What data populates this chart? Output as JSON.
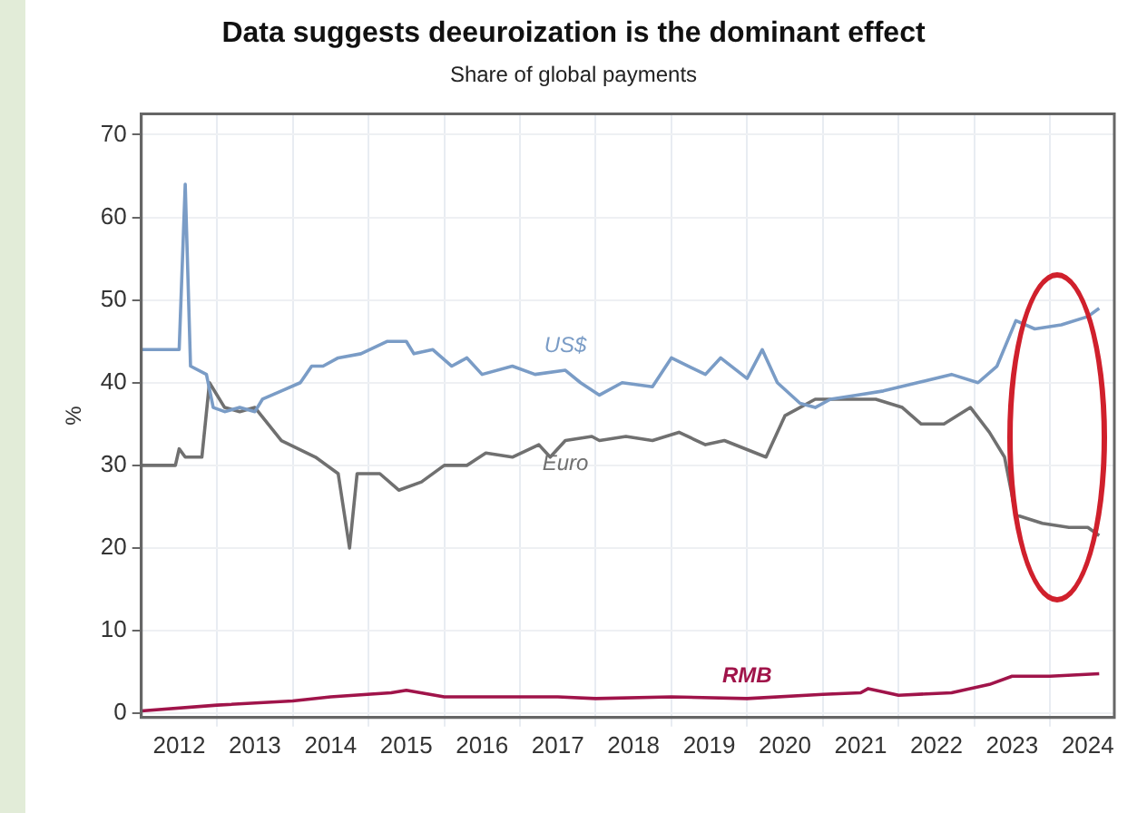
{
  "chart_data": {
    "type": "line",
    "title": "Data suggests deeuroization is the dominant effect",
    "subtitle": "Share of global payments",
    "ylabel": "%",
    "xlim": [
      2012,
      2024.85
    ],
    "ylim": [
      -0.5,
      72.5
    ],
    "xticks": [
      {
        "value": 2012.5,
        "label": "2012"
      },
      {
        "value": 2013,
        "label": null
      },
      {
        "value": 2013.5,
        "label": "2013"
      },
      {
        "value": 2014,
        "label": null
      },
      {
        "value": 2014.5,
        "label": "2014"
      },
      {
        "value": 2015,
        "label": null
      },
      {
        "value": 2015.5,
        "label": "2015"
      },
      {
        "value": 2016,
        "label": null
      },
      {
        "value": 2016.5,
        "label": "2016"
      },
      {
        "value": 2017,
        "label": null
      },
      {
        "value": 2017.5,
        "label": "2017"
      },
      {
        "value": 2018,
        "label": null
      },
      {
        "value": 2018.5,
        "label": "2018"
      },
      {
        "value": 2019,
        "label": null
      },
      {
        "value": 2019.5,
        "label": "2019"
      },
      {
        "value": 2020,
        "label": null
      },
      {
        "value": 2020.5,
        "label": "2020"
      },
      {
        "value": 2021,
        "label": null
      },
      {
        "value": 2021.5,
        "label": "2021"
      },
      {
        "value": 2022,
        "label": null
      },
      {
        "value": 2022.5,
        "label": "2022"
      },
      {
        "value": 2023,
        "label": null
      },
      {
        "value": 2023.5,
        "label": "2023"
      },
      {
        "value": 2024,
        "label": null
      },
      {
        "value": 2024.5,
        "label": "2024"
      }
    ],
    "yticks": [
      0,
      10,
      20,
      30,
      40,
      50,
      60,
      70
    ],
    "grid": true,
    "legend": false,
    "marker": "none",
    "line_style": "solid",
    "series": [
      {
        "name": "US$",
        "color": "#7a9cc6",
        "x": [
          2012,
          2012.5,
          2012.58,
          2012.65,
          2012.86,
          2012.95,
          2013.1,
          2013.3,
          2013.5,
          2013.6,
          2013.85,
          2014.1,
          2014.25,
          2014.4,
          2014.6,
          2014.9,
          2015.25,
          2015.5,
          2015.6,
          2015.85,
          2016.1,
          2016.3,
          2016.5,
          2016.9,
          2017.2,
          2017.6,
          2017.8,
          2018.05,
          2018.35,
          2018.75,
          2019,
          2019.45,
          2019.65,
          2020,
          2020.2,
          2020.4,
          2020.7,
          2020.9,
          2021.1,
          2021.45,
          2021.8,
          2022.25,
          2022.7,
          2023.05,
          2023.3,
          2023.55,
          2023.8,
          2024.15,
          2024.5,
          2024.65
        ],
        "values": [
          44,
          44,
          64,
          42,
          41,
          37,
          36.5,
          37,
          36.5,
          38,
          39,
          40,
          42,
          42,
          43,
          43.5,
          45,
          45,
          43.5,
          44,
          42,
          43,
          41,
          42,
          41,
          41.5,
          40,
          38.5,
          40,
          39.5,
          43,
          41,
          43,
          40.5,
          44,
          40,
          37.5,
          37,
          38,
          38.5,
          39,
          40,
          41,
          40,
          42,
          47.5,
          46.5,
          47,
          48,
          49
        ]
      },
      {
        "name": "Euro",
        "color": "#707070",
        "x": [
          2012,
          2012.45,
          2012.5,
          2012.58,
          2012.8,
          2012.9,
          2013.1,
          2013.3,
          2013.5,
          2013.85,
          2014.3,
          2014.6,
          2014.75,
          2014.85,
          2015.15,
          2015.4,
          2015.7,
          2016,
          2016.3,
          2016.55,
          2016.9,
          2017.25,
          2017.4,
          2017.6,
          2017.95,
          2018.05,
          2018.4,
          2018.75,
          2019.1,
          2019.45,
          2019.7,
          2020.25,
          2020.5,
          2020.9,
          2021.2,
          2021.7,
          2022.05,
          2022.3,
          2022.6,
          2022.95,
          2023.2,
          2023.4,
          2023.55,
          2023.9,
          2024.25,
          2024.5,
          2024.65
        ],
        "values": [
          30,
          30,
          32,
          31,
          31,
          40,
          37,
          36.5,
          37,
          33,
          31,
          29,
          20,
          29,
          29,
          27,
          28,
          30,
          30,
          31.5,
          31,
          32.5,
          31,
          33,
          33.5,
          33,
          33.5,
          33,
          34,
          32.5,
          33,
          31,
          36,
          38,
          38,
          38,
          37,
          35,
          35,
          37,
          34,
          31,
          24,
          23,
          22.5,
          22.5,
          21.5
        ]
      },
      {
        "name": "RMB",
        "color": "#a0144a",
        "x": [
          2012,
          2013,
          2014,
          2014.5,
          2015.3,
          2015.5,
          2016,
          2017.5,
          2018,
          2019,
          2020,
          2021,
          2021.5,
          2021.6,
          2022,
          2022.7,
          2023.2,
          2023.5,
          2024,
          2024.65
        ],
        "values": [
          0.3,
          1,
          1.5,
          2,
          2.5,
          2.8,
          2,
          2,
          1.8,
          2,
          1.8,
          2.3,
          2.5,
          3,
          2.2,
          2.5,
          3.5,
          4.5,
          4.5,
          4.8
        ]
      }
    ]
  }
}
